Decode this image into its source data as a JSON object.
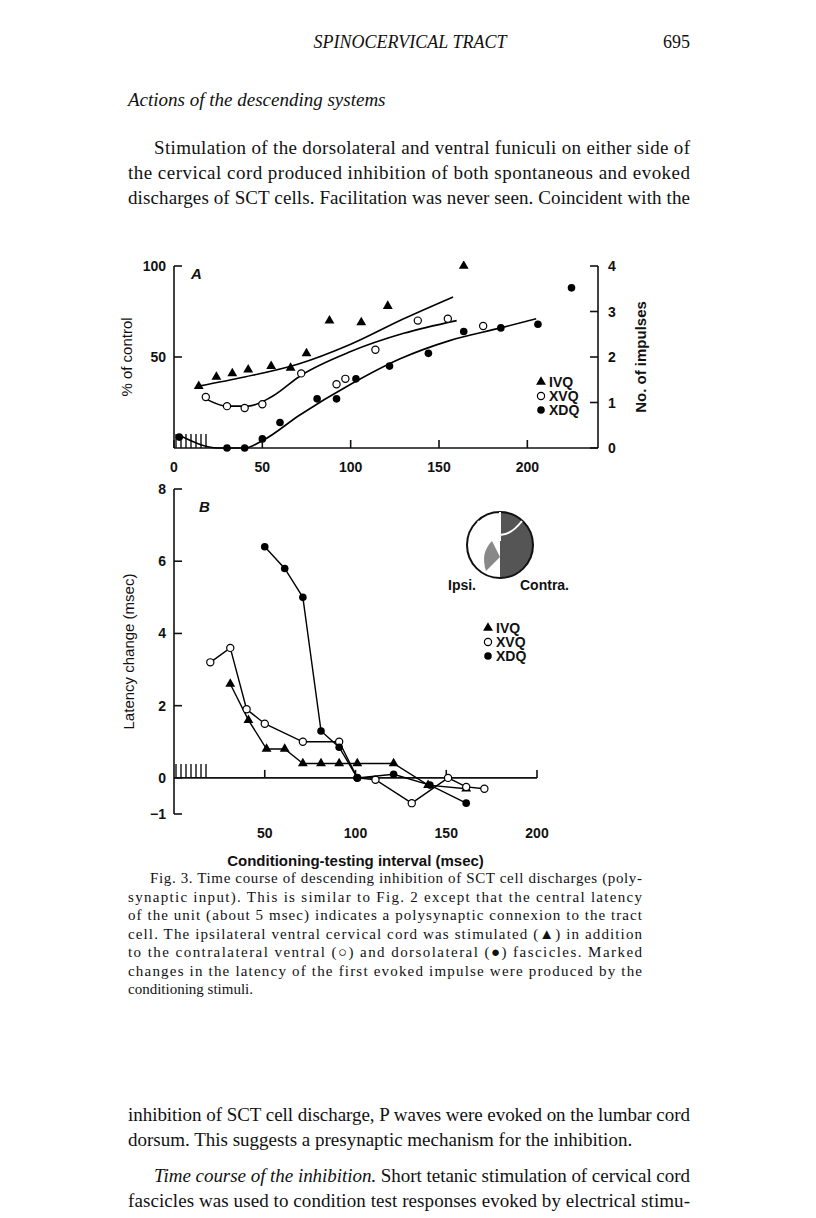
{
  "page": {
    "running_head": "SPINOCERVICAL TRACT",
    "page_number": "695",
    "section_heading": "Actions of the descending systems",
    "paragraph_lines": [
      "Stimulation of the dorsolateral and ventral funiculi on either side of",
      "the cervical cord produced inhibition of both spontaneous and evoked",
      "discharges of SCT cells. Facilitation was never seen. Coincident with the"
    ],
    "caption_lines": [
      "Fig. 3. Time course of descending inhibition of SCT cell discharges (poly-",
      "synaptic input). This is similar to Fig. 2 except that the central latency",
      "of the unit (about 5 msec) indicates a polysynaptic connexion to the tract",
      "cell. The ipsilateral ventral cervical cord was stimulated (▲) in addition",
      "to the contralateral ventral (○) and dorsolateral (●) fascicles. Marked",
      "changes in the latency of the first evoked impulse were produced by the",
      "conditioning stimuli."
    ],
    "after_lines": [
      "inhibition of SCT cell discharge, P waves were evoked on the lumbar cord",
      "dorsum. This suggests a presynaptic mechanism for the inhibition."
    ],
    "subsection": {
      "heading": "Time course of the inhibition.",
      "lines": [
        "Short tetanic stimulation of cervical cord",
        "fascicles was used to condition test responses evoked by electrical stimu-"
      ]
    }
  },
  "chart_data": [
    {
      "type": "scatter",
      "title": "A",
      "y_label": "% of control",
      "y2_label": "No. of impulses",
      "xlim": [
        0,
        240
      ],
      "xticks": [
        0,
        50,
        100,
        150,
        200
      ],
      "ylim": [
        0,
        100
      ],
      "yticks": [
        50,
        100
      ],
      "y2lim": [
        0,
        4
      ],
      "y2ticks": [
        0,
        1,
        2,
        3,
        4
      ],
      "legend": "lower right",
      "series": [
        {
          "name": "IVQ",
          "color": "#000000",
          "marker": "triangle",
          "line_style": "none",
          "x": [
            14,
            24,
            33,
            42,
            55,
            66,
            75,
            88,
            106,
            121,
            164
          ],
          "values": [
            34,
            39,
            41,
            43,
            45,
            44,
            52,
            70,
            69,
            78,
            100
          ],
          "fit": {
            "x": [
              14,
              40,
              70,
              100,
              130,
              158
            ],
            "values": [
              34,
              39,
              46,
              57,
              71,
              83
            ]
          }
        },
        {
          "name": "XVQ",
          "color": "#000000",
          "marker": "circle-open",
          "line_style": "none",
          "x": [
            18,
            30,
            40,
            50,
            72,
            92,
            97,
            114,
            138,
            155,
            175
          ],
          "values": [
            28,
            23,
            22,
            24,
            41,
            35,
            38,
            54,
            70,
            71,
            67
          ],
          "fit": {
            "x": [
              18,
              30,
              42,
              55,
              72,
              100,
              130,
              160
            ],
            "values": [
              27,
              23,
              23,
              28,
              40,
              53,
              63,
              70
            ]
          }
        },
        {
          "name": "XDQ",
          "color": "#000000",
          "marker": "circle",
          "line_style": "none",
          "x": [
            3,
            30,
            40,
            50,
            60,
            81,
            92,
            103,
            122,
            144,
            164,
            185,
            206,
            225
          ],
          "values": [
            6,
            0,
            0,
            5,
            14,
            27,
            27,
            38,
            45,
            52,
            64,
            66,
            68,
            88
          ],
          "fit": {
            "x": [
              3,
              25,
              40,
              50,
              71,
              100,
              128,
              156,
              185,
              205
            ],
            "values": [
              7,
              0,
              0,
              4,
              18,
              35,
              49,
              59,
              66,
              71
            ]
          }
        }
      ]
    },
    {
      "type": "line",
      "title": "B",
      "x_label": "Conditioning-testing interval (msec)",
      "y_label": "Latency change (msec)",
      "xlim": [
        0,
        200
      ],
      "xticks": [
        50,
        100,
        150,
        200
      ],
      "ylim": [
        -1,
        8
      ],
      "yticks": [
        {
          "value": -1,
          "label": "−1"
        },
        0,
        2,
        4,
        6,
        8
      ],
      "legend": "right",
      "annotations": [
        "Ipsi.",
        "Contra."
      ],
      "series": [
        {
          "name": "IVQ",
          "color": "#000000",
          "marker": "triangle",
          "line_style": "solid",
          "x": [
            31,
            41,
            51,
            61,
            71,
            81,
            91,
            101,
            121,
            140,
            161
          ],
          "values": [
            2.6,
            1.6,
            0.8,
            0.8,
            0.4,
            0.4,
            0.4,
            0.4,
            0.4,
            -0.2,
            -0.3
          ]
        },
        {
          "name": "XVQ",
          "color": "#000000",
          "marker": "circle-open",
          "line_style": "solid",
          "x": [
            20,
            31,
            40,
            50,
            71,
            91,
            101,
            111,
            131,
            151,
            161,
            171
          ],
          "values": [
            3.2,
            3.6,
            1.9,
            1.5,
            1.0,
            1.0,
            0,
            -0.05,
            -0.7,
            0,
            -0.25,
            -0.3
          ]
        },
        {
          "name": "XDQ",
          "color": "#000000",
          "marker": "circle",
          "line_style": "solid",
          "x": [
            50,
            61,
            71,
            81,
            91,
            101,
            121,
            141,
            161
          ],
          "values": [
            6.4,
            5.8,
            5.0,
            1.3,
            0.85,
            0,
            0.1,
            -0.2,
            -0.7
          ]
        }
      ]
    }
  ]
}
